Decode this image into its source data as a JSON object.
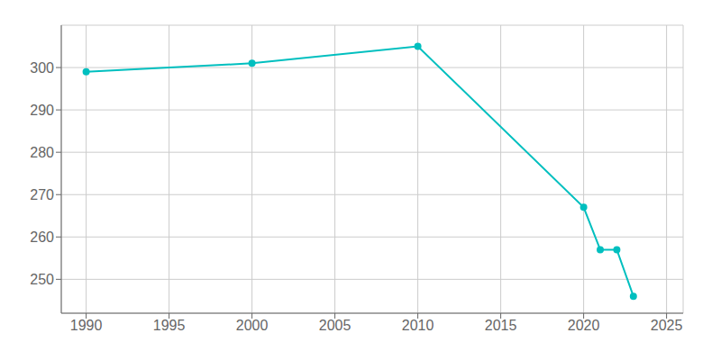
{
  "chart_data": {
    "type": "line",
    "x": [
      1990,
      2000,
      2010,
      2020,
      2021,
      2022,
      2023
    ],
    "values": [
      299,
      301,
      305,
      267,
      257,
      257,
      246
    ],
    "color": "#00BFBF",
    "marker": "o",
    "xlim": [
      1988.5,
      2026
    ],
    "ylim": [
      242,
      310
    ],
    "xticks": [
      1990,
      1995,
      2000,
      2005,
      2010,
      2015,
      2020,
      2025
    ],
    "yticks": [
      250,
      260,
      270,
      280,
      290,
      300
    ],
    "grid": true
  }
}
